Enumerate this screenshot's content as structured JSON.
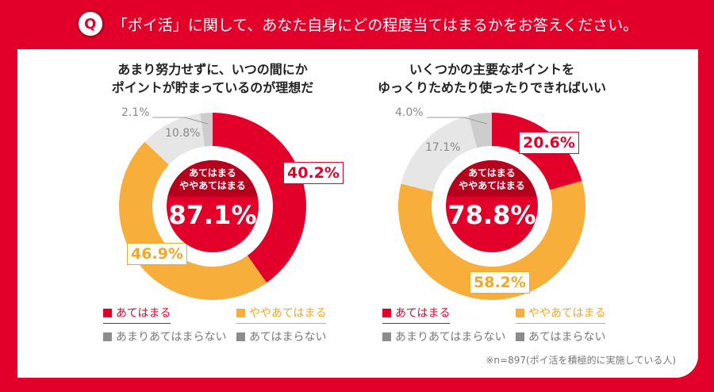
{
  "header": {
    "title": "「ポイ活」に関して、あなた自身にどの程度当てはまるかをお答えください。",
    "icon": "Q"
  },
  "colors": {
    "red": "#e2002a",
    "orange": "#f7ae3b",
    "lightgrey": "#e6e6e6",
    "darkgrey": "#cdcdcd",
    "legendgrey": "#8c8c8c"
  },
  "chart_data": [
    {
      "type": "pie",
      "title": "あまり努力せずに、いつの間にかポイントが貯まっているのが理想だ",
      "categories": [
        "あてはまる",
        "ややあてはまる",
        "あまりあてはまらない",
        "あてはまらない"
      ],
      "values": [
        40.2,
        46.9,
        10.8,
        2.1
      ],
      "labels": [
        "40.2%",
        "46.9%",
        "10.8%",
        "2.1%"
      ],
      "center_label": "あてはまる ややあてはまる",
      "center_label_1": "あてはまる",
      "center_label_2": "ややあてはまる",
      "center_value": "87.1%"
    },
    {
      "type": "pie",
      "title": "いくつかの主要なポイントをゆっくりためたり使ったりできればいい",
      "categories": [
        "あてはまる",
        "ややあてはまる",
        "あまりあてはまらない",
        "あてはまらない"
      ],
      "values": [
        20.6,
        58.2,
        17.1,
        4.0
      ],
      "labels": [
        "20.6%",
        "58.2%",
        "17.1%",
        "4.0%"
      ],
      "center_label_1": "あてはまる",
      "center_label_2": "ややあてはまる",
      "center_value": "78.8%"
    }
  ],
  "titles": [
    [
      "あまり努力せずに、いつの間にか",
      "ポイントが貯まっているのが理想だ"
    ],
    [
      "いくつかの主要なポイントを",
      "ゆっくりためたり使ったりできればいい"
    ]
  ],
  "legend": [
    "あてはまる",
    "ややあてはまる",
    "あまりあてはまらない",
    "あてはまらない"
  ],
  "note": "※n=897(ポイ活を積極的に実施している人)"
}
